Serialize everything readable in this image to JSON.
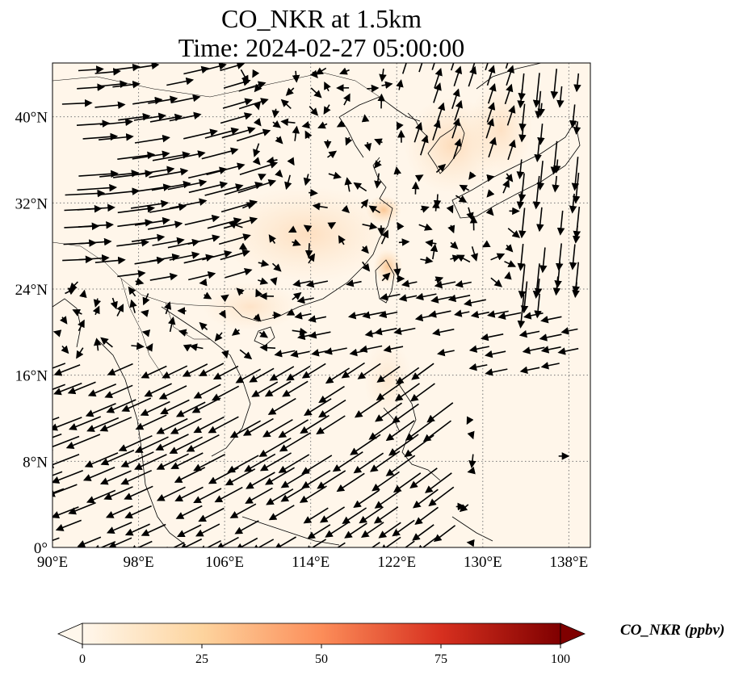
{
  "title": "CO_NKR at 1.5km",
  "subtitle": "Time: 2024-02-27 05:00:00",
  "colormap": {
    "name": "OrRd",
    "colors": [
      "#fff7ec",
      "#fdd49e",
      "#fc8d59",
      "#d7301f",
      "#7f0000"
    ]
  },
  "map": {
    "lon_range": [
      90,
      140
    ],
    "lat_range": [
      0,
      45
    ],
    "grid": "dotted",
    "x_ticks": [
      "90°E",
      "98°E",
      "106°E",
      "114°E",
      "122°E",
      "130°E",
      "138°E"
    ],
    "x_tick_values": [
      90,
      98,
      106,
      114,
      122,
      130,
      138
    ],
    "y_ticks": [
      "0°",
      "8°N",
      "16°N",
      "24°N",
      "32°N",
      "40°N"
    ],
    "y_tick_values": [
      0,
      8,
      16,
      24,
      32,
      40
    ]
  },
  "colorbar": {
    "label": "CO_NKR (ppbv)",
    "min": 0,
    "max": 100,
    "ticks": [
      "0",
      "25",
      "50",
      "75",
      "100"
    ],
    "extend": "both"
  }
}
